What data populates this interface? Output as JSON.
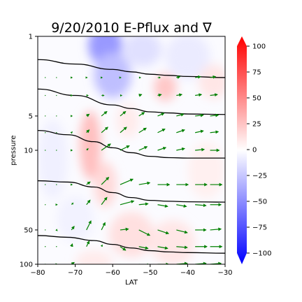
{
  "chart_data": {
    "type": "quiver-contour",
    "title": "9/20/2010 E-Pflux and ∇",
    "xlabel": "LAT",
    "ylabel": "pressure",
    "xlim": [
      -80,
      -30
    ],
    "ylim": [
      100,
      1
    ],
    "yscale": "log",
    "x_ticks": [
      -80,
      -70,
      -60,
      -50,
      -40,
      -30
    ],
    "y_ticks": [
      1,
      5,
      10,
      50,
      100
    ],
    "colormap": "bwr",
    "colorbar": {
      "range": [
        -100,
        100
      ],
      "ticks": [
        100,
        75,
        50,
        25,
        0,
        -25,
        -50,
        -75,
        -100
      ]
    },
    "colors": {
      "arrow": "#008000",
      "contour": "#000000",
      "positive": "#ff0000",
      "negative": "#0000ff"
    },
    "shading_patches": [
      {
        "lat": -62,
        "p": 1.2,
        "value": -40,
        "r_lat": 4.5,
        "r_logp": 0.18
      },
      {
        "lat": -60,
        "p": 2.2,
        "value": -25,
        "r_lat": 5,
        "r_logp": 0.2
      },
      {
        "lat": -52,
        "p": 1.3,
        "value": -12,
        "r_lat": 5,
        "r_logp": 0.15
      },
      {
        "lat": -40,
        "p": 1.5,
        "value": -8,
        "r_lat": 6,
        "r_logp": 0.2
      },
      {
        "lat": -46,
        "p": 2.8,
        "value": 22,
        "r_lat": 3,
        "r_logp": 0.12
      },
      {
        "lat": -33,
        "p": 2.5,
        "value": 10,
        "r_lat": 4,
        "r_logp": 0.15
      },
      {
        "lat": -66,
        "p": 9.0,
        "value": 25,
        "r_lat": 2.8,
        "r_logp": 0.3
      },
      {
        "lat": -62,
        "p": 20,
        "value": 15,
        "r_lat": 3,
        "r_logp": 0.2
      },
      {
        "lat": -56,
        "p": 5.5,
        "value": 8,
        "r_lat": 3,
        "r_logp": 0.15
      },
      {
        "lat": -55,
        "p": 55,
        "value": 12,
        "r_lat": 6,
        "r_logp": 0.2
      },
      {
        "lat": -44,
        "p": 65,
        "value": 10,
        "r_lat": 6,
        "r_logp": 0.2
      },
      {
        "lat": -76,
        "p": 12,
        "value": -6,
        "r_lat": 4,
        "r_logp": 0.35
      },
      {
        "lat": -70,
        "p": 40,
        "value": -5,
        "r_lat": 5,
        "r_logp": 0.2
      },
      {
        "lat": -35,
        "p": 15,
        "value": 6,
        "r_lat": 5,
        "r_logp": 0.25
      },
      {
        "lat": -65,
        "p": 95,
        "value": 8,
        "r_lat": 5,
        "r_logp": 0.1
      }
    ],
    "contours": [
      {
        "lat": [
          -80,
          -70,
          -60,
          -55,
          -50,
          -45,
          -40,
          -30
        ],
        "p": [
          1.6,
          1.75,
          1.95,
          2.05,
          2.15,
          2.2,
          2.25,
          2.3
        ]
      },
      {
        "lat": [
          -80,
          -70,
          -60,
          -55,
          -50,
          -45,
          -40,
          -30
        ],
        "p": [
          2.9,
          3.3,
          4.0,
          4.3,
          4.6,
          4.7,
          4.8,
          4.85
        ]
      },
      {
        "lat": [
          -80,
          -72,
          -65,
          -60,
          -55,
          -50,
          -45,
          -40,
          -30
        ],
        "p": [
          6.7,
          7.3,
          8.4,
          9.5,
          10.5,
          11.3,
          11.6,
          11.7,
          11.7
        ]
      },
      {
        "lat": [
          -80,
          -72,
          -65,
          -60,
          -55,
          -50,
          -45,
          -40,
          -30
        ],
        "p": [
          18.5,
          19.0,
          21.0,
          23.5,
          26.0,
          27.5,
          28.0,
          28.3,
          28.5
        ]
      },
      {
        "lat": [
          -80,
          -72,
          -65,
          -60,
          -55,
          -50,
          -45,
          -40,
          -30
        ],
        "p": [
          56,
          58,
          62,
          67,
          72,
          76,
          78,
          79,
          80
        ]
      }
    ],
    "rows_p": [
      2.3,
      3.3,
      5.0,
      7.0,
      10.0,
      20.0,
      30.0,
      50.0,
      70.0,
      100.0
    ],
    "cols_lat": [
      -78,
      -75,
      -71,
      -67,
      -63,
      -58,
      -53,
      -48,
      -43,
      -38,
      -34,
      -30
    ],
    "arrows": [
      [
        [
          0,
          0
        ],
        [
          0,
          0
        ],
        [
          1,
          0
        ],
        [
          1,
          0
        ],
        [
          1,
          0
        ],
        [
          1,
          0
        ],
        [
          2,
          0
        ],
        [
          3,
          0
        ],
        [
          4,
          1
        ],
        [
          6,
          1
        ],
        [
          6,
          1
        ],
        [
          7,
          1
        ]
      ],
      [
        [
          0,
          0
        ],
        [
          0,
          0
        ],
        [
          1,
          0
        ],
        [
          2,
          0
        ],
        [
          3,
          0
        ],
        [
          2,
          0
        ],
        [
          3,
          1
        ],
        [
          4,
          1
        ],
        [
          6,
          1
        ],
        [
          7,
          1
        ],
        [
          8,
          1
        ],
        [
          9,
          1
        ]
      ],
      [
        [
          0,
          0
        ],
        [
          0,
          0
        ],
        [
          1,
          0
        ],
        [
          3,
          2
        ],
        [
          6,
          5
        ],
        [
          6,
          5
        ],
        [
          6,
          4
        ],
        [
          7,
          3
        ],
        [
          8,
          2
        ],
        [
          9,
          1
        ],
        [
          9,
          1
        ],
        [
          10,
          0
        ]
      ],
      [
        [
          0,
          0
        ],
        [
          0,
          0
        ],
        [
          1,
          1
        ],
        [
          3,
          3
        ],
        [
          7,
          6
        ],
        [
          7,
          6
        ],
        [
          8,
          5
        ],
        [
          8,
          4
        ],
        [
          9,
          3
        ],
        [
          9,
          2
        ],
        [
          9,
          1
        ],
        [
          9,
          0
        ]
      ],
      [
        [
          0,
          0
        ],
        [
          0,
          0
        ],
        [
          1,
          0
        ],
        [
          2,
          2
        ],
        [
          10,
          7
        ],
        [
          10,
          5
        ],
        [
          9,
          4
        ],
        [
          9,
          3
        ],
        [
          9,
          2
        ],
        [
          10,
          1
        ],
        [
          10,
          0
        ],
        [
          10,
          0
        ]
      ],
      [
        [
          0,
          0
        ],
        [
          0,
          0
        ],
        [
          1,
          0
        ],
        [
          4,
          3
        ],
        [
          8,
          8
        ],
        [
          14,
          6
        ],
        [
          12,
          2
        ],
        [
          13,
          0
        ],
        [
          13,
          0
        ],
        [
          13,
          0
        ],
        [
          13,
          0
        ],
        [
          13,
          0
        ]
      ],
      [
        [
          0,
          0
        ],
        [
          1,
          0
        ],
        [
          2,
          2
        ],
        [
          4,
          5
        ],
        [
          6,
          8
        ],
        [
          15,
          4
        ],
        [
          10,
          1
        ],
        [
          11,
          -2
        ],
        [
          11,
          -2
        ],
        [
          12,
          -1
        ],
        [
          12,
          0
        ],
        [
          13,
          0
        ]
      ],
      [
        [
          0,
          0
        ],
        [
          1,
          -1
        ],
        [
          3,
          4
        ],
        [
          5,
          10
        ],
        [
          4,
          8
        ],
        [
          9,
          1
        ],
        [
          12,
          -6
        ],
        [
          12,
          -4
        ],
        [
          12,
          -3
        ],
        [
          12,
          0
        ],
        [
          12,
          1
        ],
        [
          13,
          1
        ]
      ],
      [
        [
          0,
          0
        ],
        [
          0,
          0
        ],
        [
          1,
          3
        ],
        [
          3,
          6
        ],
        [
          1,
          2
        ],
        [
          6,
          -4
        ],
        [
          10,
          -2
        ],
        [
          11,
          -2
        ],
        [
          12,
          -1
        ],
        [
          13,
          0
        ],
        [
          13,
          0
        ],
        [
          14,
          0
        ]
      ],
      [
        [
          0,
          0
        ],
        [
          1,
          0
        ],
        [
          3,
          2
        ],
        [
          9,
          -6
        ],
        [
          12,
          -8
        ],
        [
          12,
          -4
        ],
        [
          12,
          -1
        ],
        [
          12,
          0
        ],
        [
          12,
          1
        ],
        [
          12,
          1
        ],
        [
          12,
          1
        ],
        [
          12,
          1
        ]
      ]
    ]
  }
}
